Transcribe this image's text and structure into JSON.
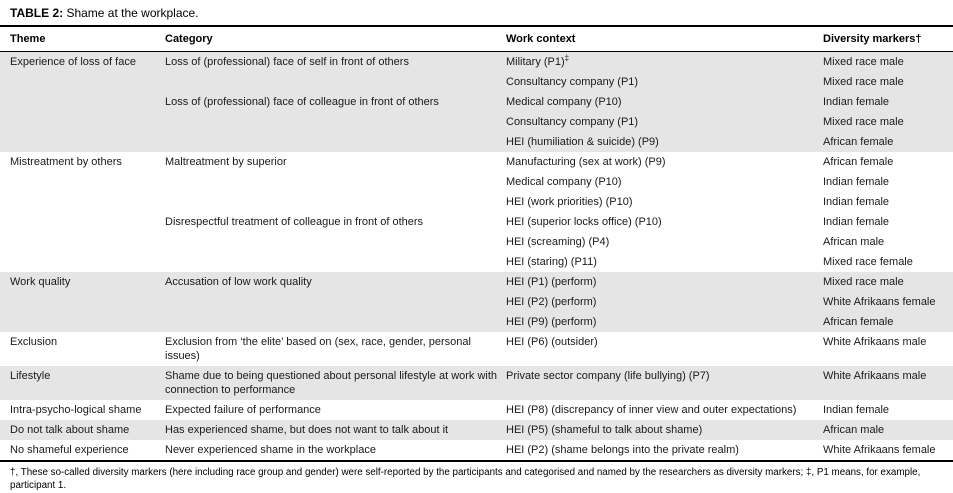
{
  "colors": {
    "band": "#e5e5e5",
    "rule": "#000000",
    "text": "#1a1a1a"
  },
  "title": {
    "bold": "TABLE 2:",
    "rest": " Shame at the workplace."
  },
  "table": {
    "columns": [
      "Theme",
      "Category",
      "Work context",
      "Diversity markers†"
    ],
    "rows": [
      {
        "theme": "Experience of loss of face",
        "category": "Loss of (professional) face of self in front of others",
        "work_context": "Military (P1)",
        "work_context_sup": "‡",
        "diversity": "Mixed race male",
        "shaded": true
      },
      {
        "theme": "",
        "category": "",
        "work_context": "Consultancy company (P1)",
        "diversity": "Mixed race male",
        "shaded": true
      },
      {
        "theme": "",
        "category": "Loss of (professional) face of colleague in front of others",
        "work_context": "Medical company (P10)",
        "diversity": "Indian female",
        "shaded": true
      },
      {
        "theme": "",
        "category": "",
        "work_context": "Consultancy company (P1)",
        "diversity": "Mixed race male",
        "shaded": true
      },
      {
        "theme": "",
        "category": "",
        "work_context": "HEI (humiliation & suicide) (P9)",
        "diversity": "African female",
        "shaded": true
      },
      {
        "theme": "Mistreatment by others",
        "category": "Maltreatment by superior",
        "work_context": "Manufacturing (sex at work) (P9)",
        "diversity": "African female",
        "shaded": false
      },
      {
        "theme": "",
        "category": "",
        "work_context": "Medical company (P10)",
        "diversity": "Indian female",
        "shaded": false
      },
      {
        "theme": "",
        "category": "",
        "work_context": "HEI (work priorities) (P10)",
        "diversity": "Indian female",
        "shaded": false
      },
      {
        "theme": "",
        "category": "Disrespectful treatment of colleague in front of others",
        "work_context": "HEI (superior locks office) (P10)",
        "diversity": "Indian female",
        "shaded": false
      },
      {
        "theme": "",
        "category": "",
        "work_context": "HEI (screaming) (P4)",
        "diversity": "African male",
        "shaded": false
      },
      {
        "theme": "",
        "category": "",
        "work_context": "HEI (staring) (P11)",
        "diversity": "Mixed race female",
        "shaded": false
      },
      {
        "theme": "Work quality",
        "category": "Accusation of low work quality",
        "work_context": "HEI (P1) (perform)",
        "diversity": "Mixed race male",
        "shaded": true
      },
      {
        "theme": "",
        "category": "",
        "work_context": "HEI (P2) (perform)",
        "diversity": "White Afrikaans female",
        "shaded": true
      },
      {
        "theme": "",
        "category": "",
        "work_context": "HEI (P9) (perform)",
        "diversity": "African female",
        "shaded": true
      },
      {
        "theme": "Exclusion",
        "category": "Exclusion from ‘the elite’ based on (sex, race, gender, personal issues)",
        "work_context": "HEI (P6) (outsider)",
        "diversity": "White Afrikaans male",
        "shaded": false
      },
      {
        "theme": "Lifestyle",
        "category": "Shame due to being questioned about personal lifestyle at work with connection to performance",
        "work_context": "Private sector company (life bullying) (P7)",
        "diversity": "White Afrikaans male",
        "shaded": true
      },
      {
        "theme": "Intra-psycho-logical shame",
        "category": "Expected failure of performance",
        "work_context": "HEI (P8) (discrepancy of inner view and outer expectations)",
        "diversity": "Indian female",
        "shaded": false
      },
      {
        "theme": "Do not talk about shame",
        "category": "Has experienced shame, but does not want to talk about it",
        "work_context": "HEI (P5) (shameful to talk about shame)",
        "diversity": "African male",
        "shaded": true
      },
      {
        "theme": "No shameful experience",
        "category": "Never experienced shame in the workplace",
        "work_context": "HEI (P2) (shame belongs into the private realm)",
        "diversity": "White Afrikaans female",
        "shaded": false
      }
    ]
  },
  "footnote": "†, These so-called diversity markers (here including race group and gender) were self-reported by the participants and categorised and named by the researchers as diversity markers; ‡, P1 means, for example, participant 1."
}
